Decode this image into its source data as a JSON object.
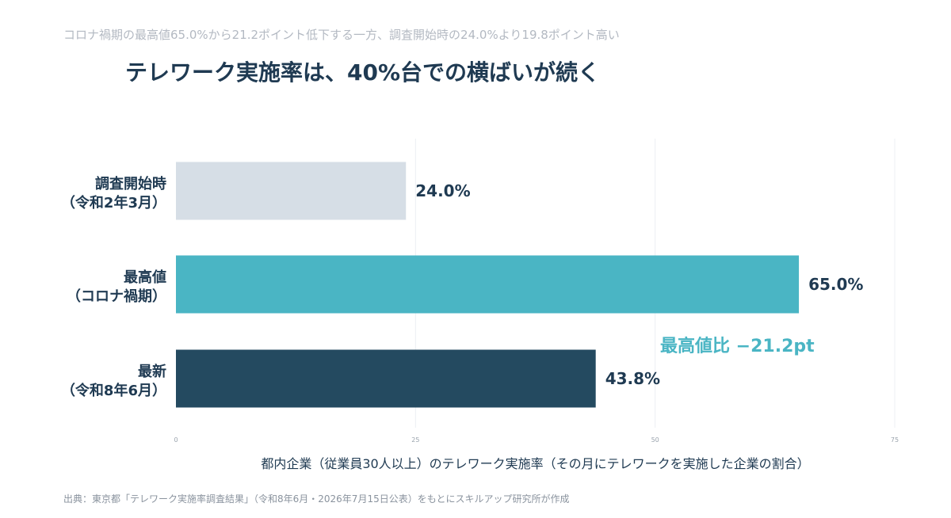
{
  "subtitle": "コロナ禍期の最高値65.0%から21.2ポイント低下する一方、調査開始時の24.0%より19.8ポイント高い",
  "title": "テレワーク実施率は、40%台での横ばいが続く",
  "source": "出典：東京都「テレワーク実施率調査結果」（令和8年6月・2026年7月15日公表）をもとにスキルアップ研究所が作成",
  "chart_data": {
    "type": "bar",
    "orientation": "horizontal",
    "categories": [
      [
        "調査開始時",
        "（令和2年3月）"
      ],
      [
        "最高値",
        "（コロナ禍期）"
      ],
      [
        "最新",
        "（令和8年6月）"
      ]
    ],
    "values": [
      24.0,
      65.0,
      43.8
    ],
    "value_labels": [
      "24.0%",
      "65.0%",
      "43.8%"
    ],
    "bar_colors": [
      "#d6dee6",
      "#4ab5c4",
      "#244a60"
    ],
    "xlim": [
      0,
      75
    ],
    "x_ticks": [
      0,
      25,
      50,
      75
    ],
    "xlabel": "都内企業（従業員30人以上）のテレワーク実施率（その月にテレワークを実施した企業の割合）",
    "ylabel": "",
    "grid": true,
    "annotation": {
      "text": "最高値比 −21.2pt",
      "color": "#4ab5c4"
    }
  }
}
